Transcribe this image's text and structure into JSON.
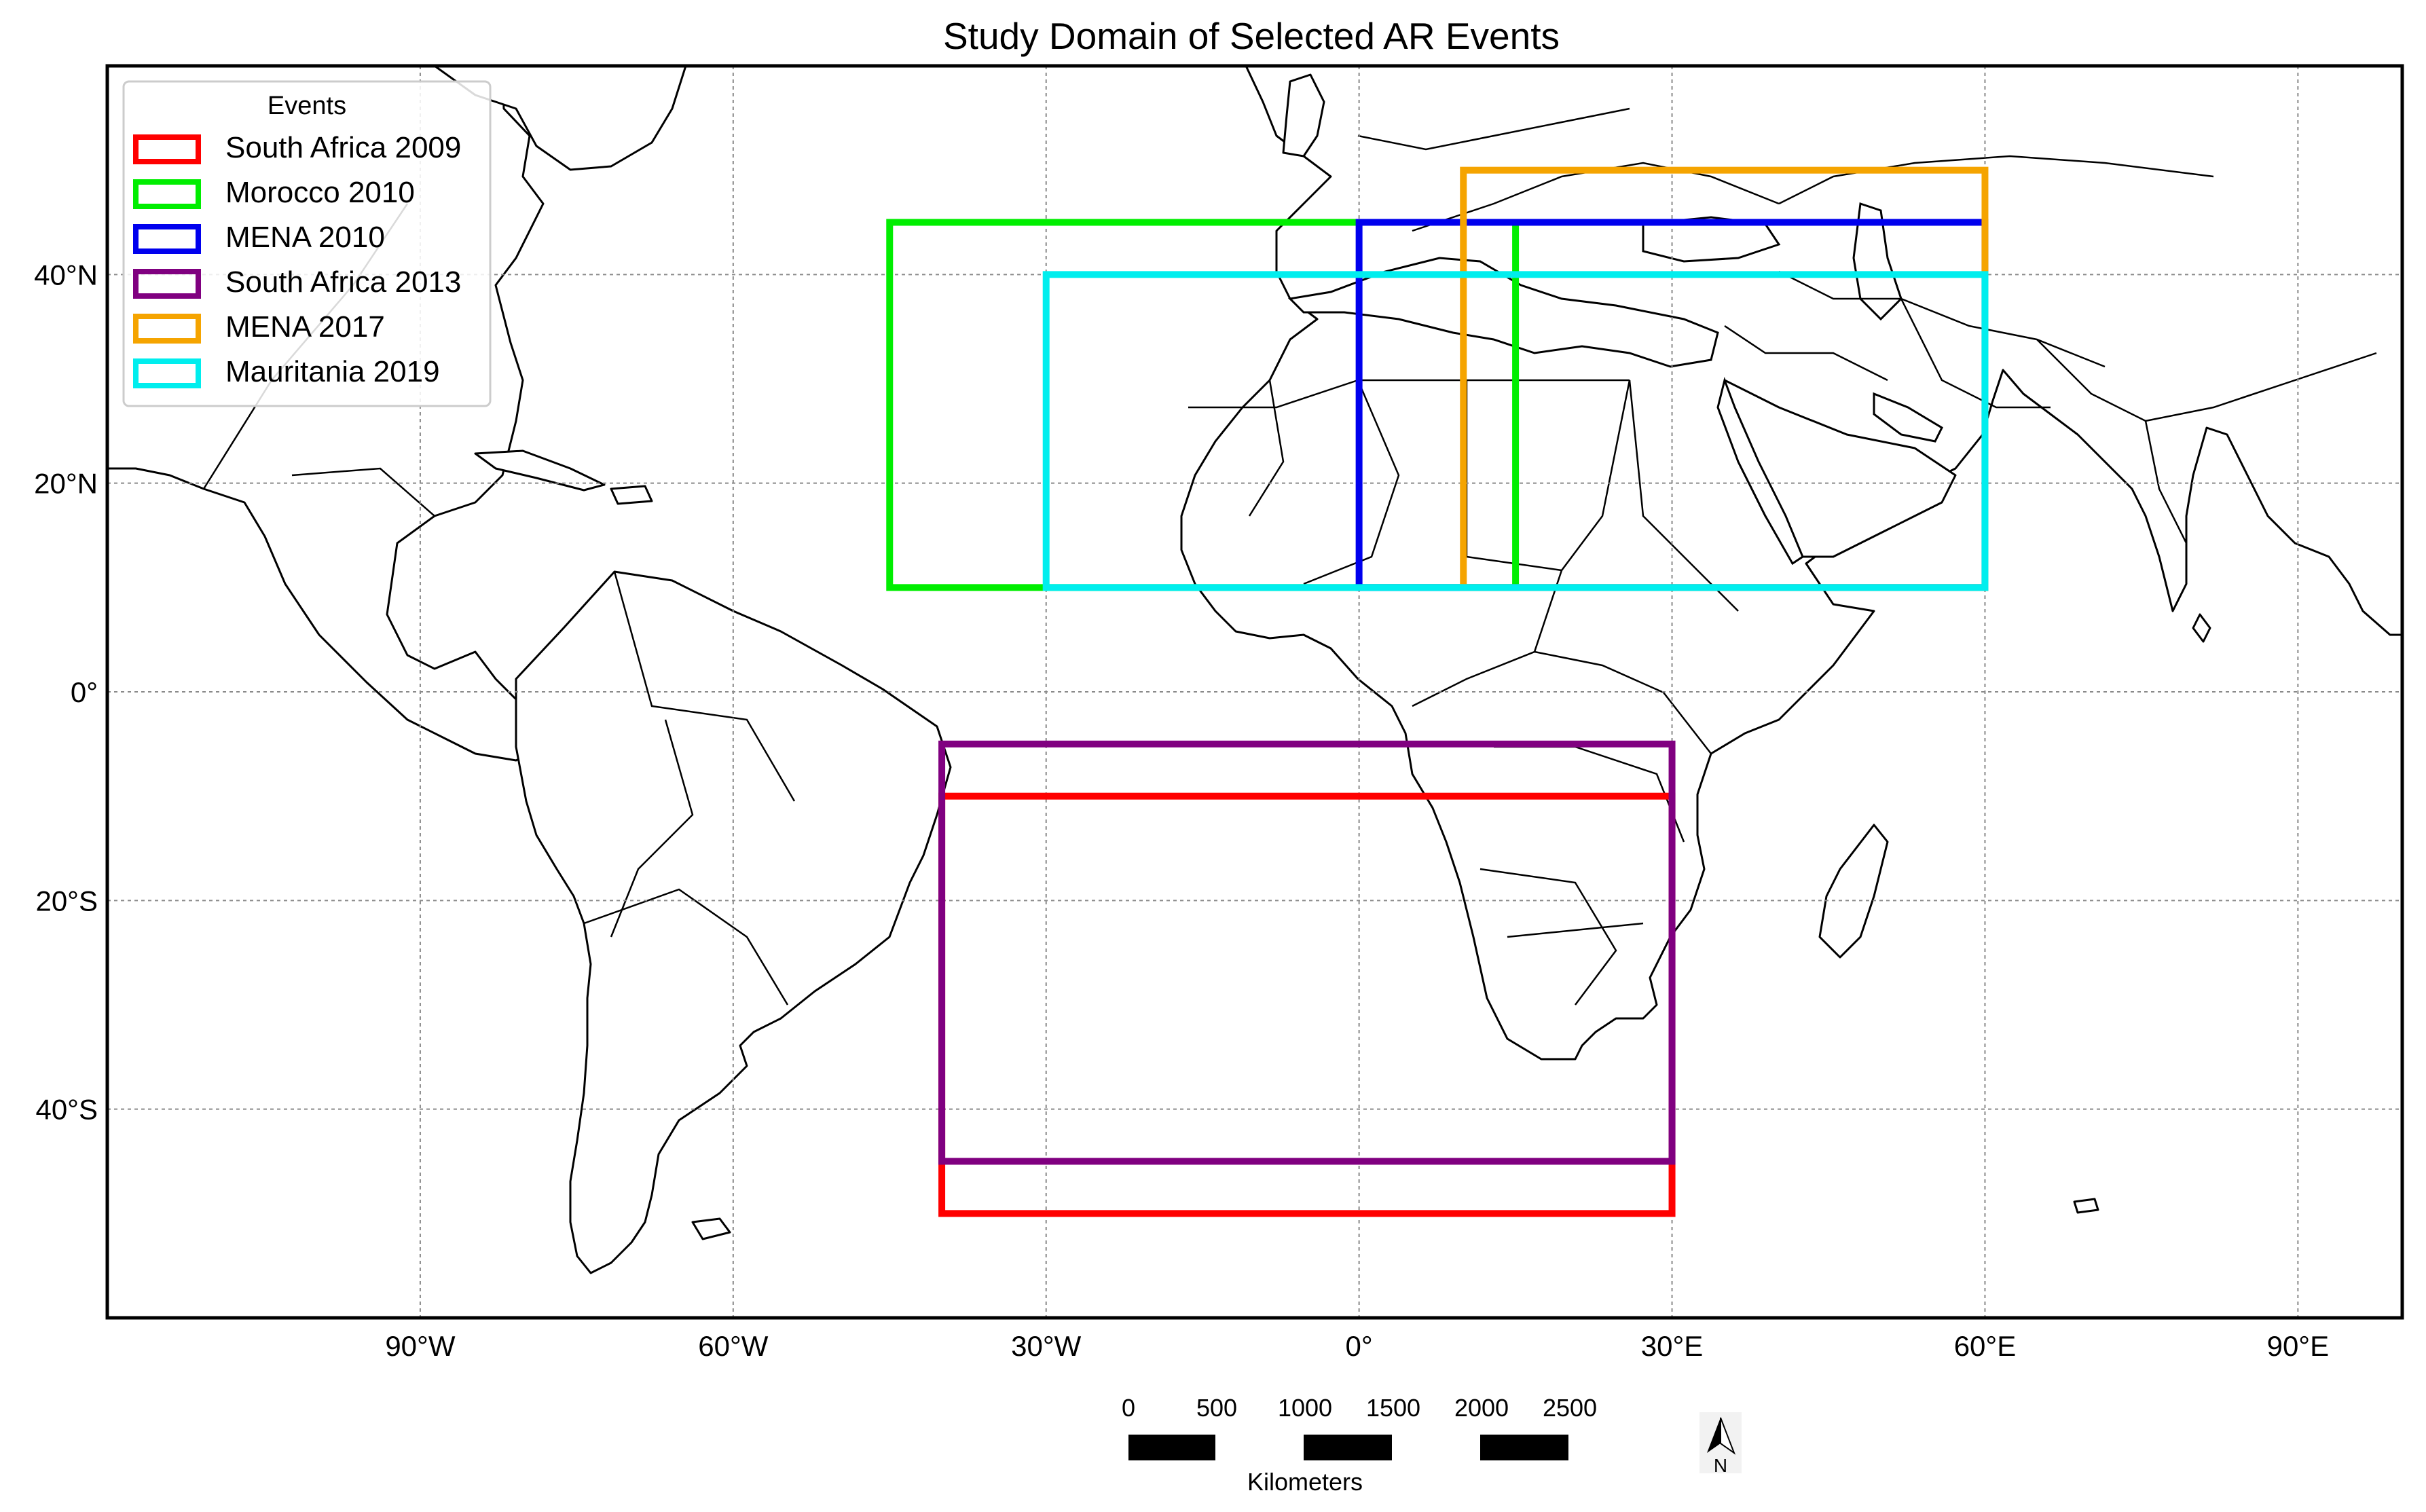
{
  "title": "Study Domain of Selected AR Events",
  "map": {
    "extent": {
      "lon_min": -120,
      "lon_max": 100,
      "lat_min": -60,
      "lat_max": 60
    },
    "projection": "plate carree",
    "grid": true,
    "x_ticks": [
      {
        "lon": -90,
        "label": "90°W"
      },
      {
        "lon": -60,
        "label": "60°W"
      },
      {
        "lon": -30,
        "label": "30°W"
      },
      {
        "lon": 0,
        "label": "0°"
      },
      {
        "lon": 30,
        "label": "30°E"
      },
      {
        "lon": 60,
        "label": "60°E"
      },
      {
        "lon": 90,
        "label": "90°E"
      }
    ],
    "y_ticks": [
      {
        "lat": 40,
        "label": "40°N"
      },
      {
        "lat": 20,
        "label": "20°N"
      },
      {
        "lat": 0,
        "label": "0°"
      },
      {
        "lat": -20,
        "label": "20°S"
      },
      {
        "lat": -40,
        "label": "40°S"
      }
    ]
  },
  "legend": {
    "title": "Events",
    "placement": "top-left",
    "items": [
      {
        "label": "South Africa 2009",
        "color": "#ff0000"
      },
      {
        "label": "Morocco 2010",
        "color": "#00ee00"
      },
      {
        "label": "MENA 2010",
        "color": "#0000ee"
      },
      {
        "label": "South Africa 2013",
        "color": "#800080"
      },
      {
        "label": "MENA 2017",
        "color": "#f5a400"
      },
      {
        "label": "Mauritania 2019",
        "color": "#00eeee"
      }
    ]
  },
  "chart_data": {
    "type": "map-regions",
    "regions": [
      {
        "name": "South Africa 2009",
        "lon_min": -40,
        "lon_max": 30,
        "lat_min": -50,
        "lat_max": -10,
        "color": "#ff0000"
      },
      {
        "name": "Morocco 2010",
        "lon_min": -45,
        "lon_max": 15,
        "lat_min": 10,
        "lat_max": 45,
        "color": "#00ee00"
      },
      {
        "name": "MENA 2010",
        "lon_min": 0,
        "lon_max": 60,
        "lat_min": 10,
        "lat_max": 45,
        "color": "#0000ee"
      },
      {
        "name": "South Africa 2013",
        "lon_min": -40,
        "lon_max": 30,
        "lat_min": -45,
        "lat_max": -5,
        "color": "#800080"
      },
      {
        "name": "MENA 2017",
        "lon_min": 10,
        "lon_max": 60,
        "lat_min": 10,
        "lat_max": 50,
        "color": "#f5a400"
      },
      {
        "name": "Mauritania 2019",
        "lon_min": -30,
        "lon_max": 60,
        "lat_min": 10,
        "lat_max": 40,
        "color": "#00eeee"
      }
    ]
  },
  "scale_bar": {
    "unit": "Kilometers",
    "labels": [
      "0",
      "500",
      "1000",
      "1500",
      "2000",
      "2500"
    ]
  },
  "north_arrow": {
    "label": "N"
  }
}
